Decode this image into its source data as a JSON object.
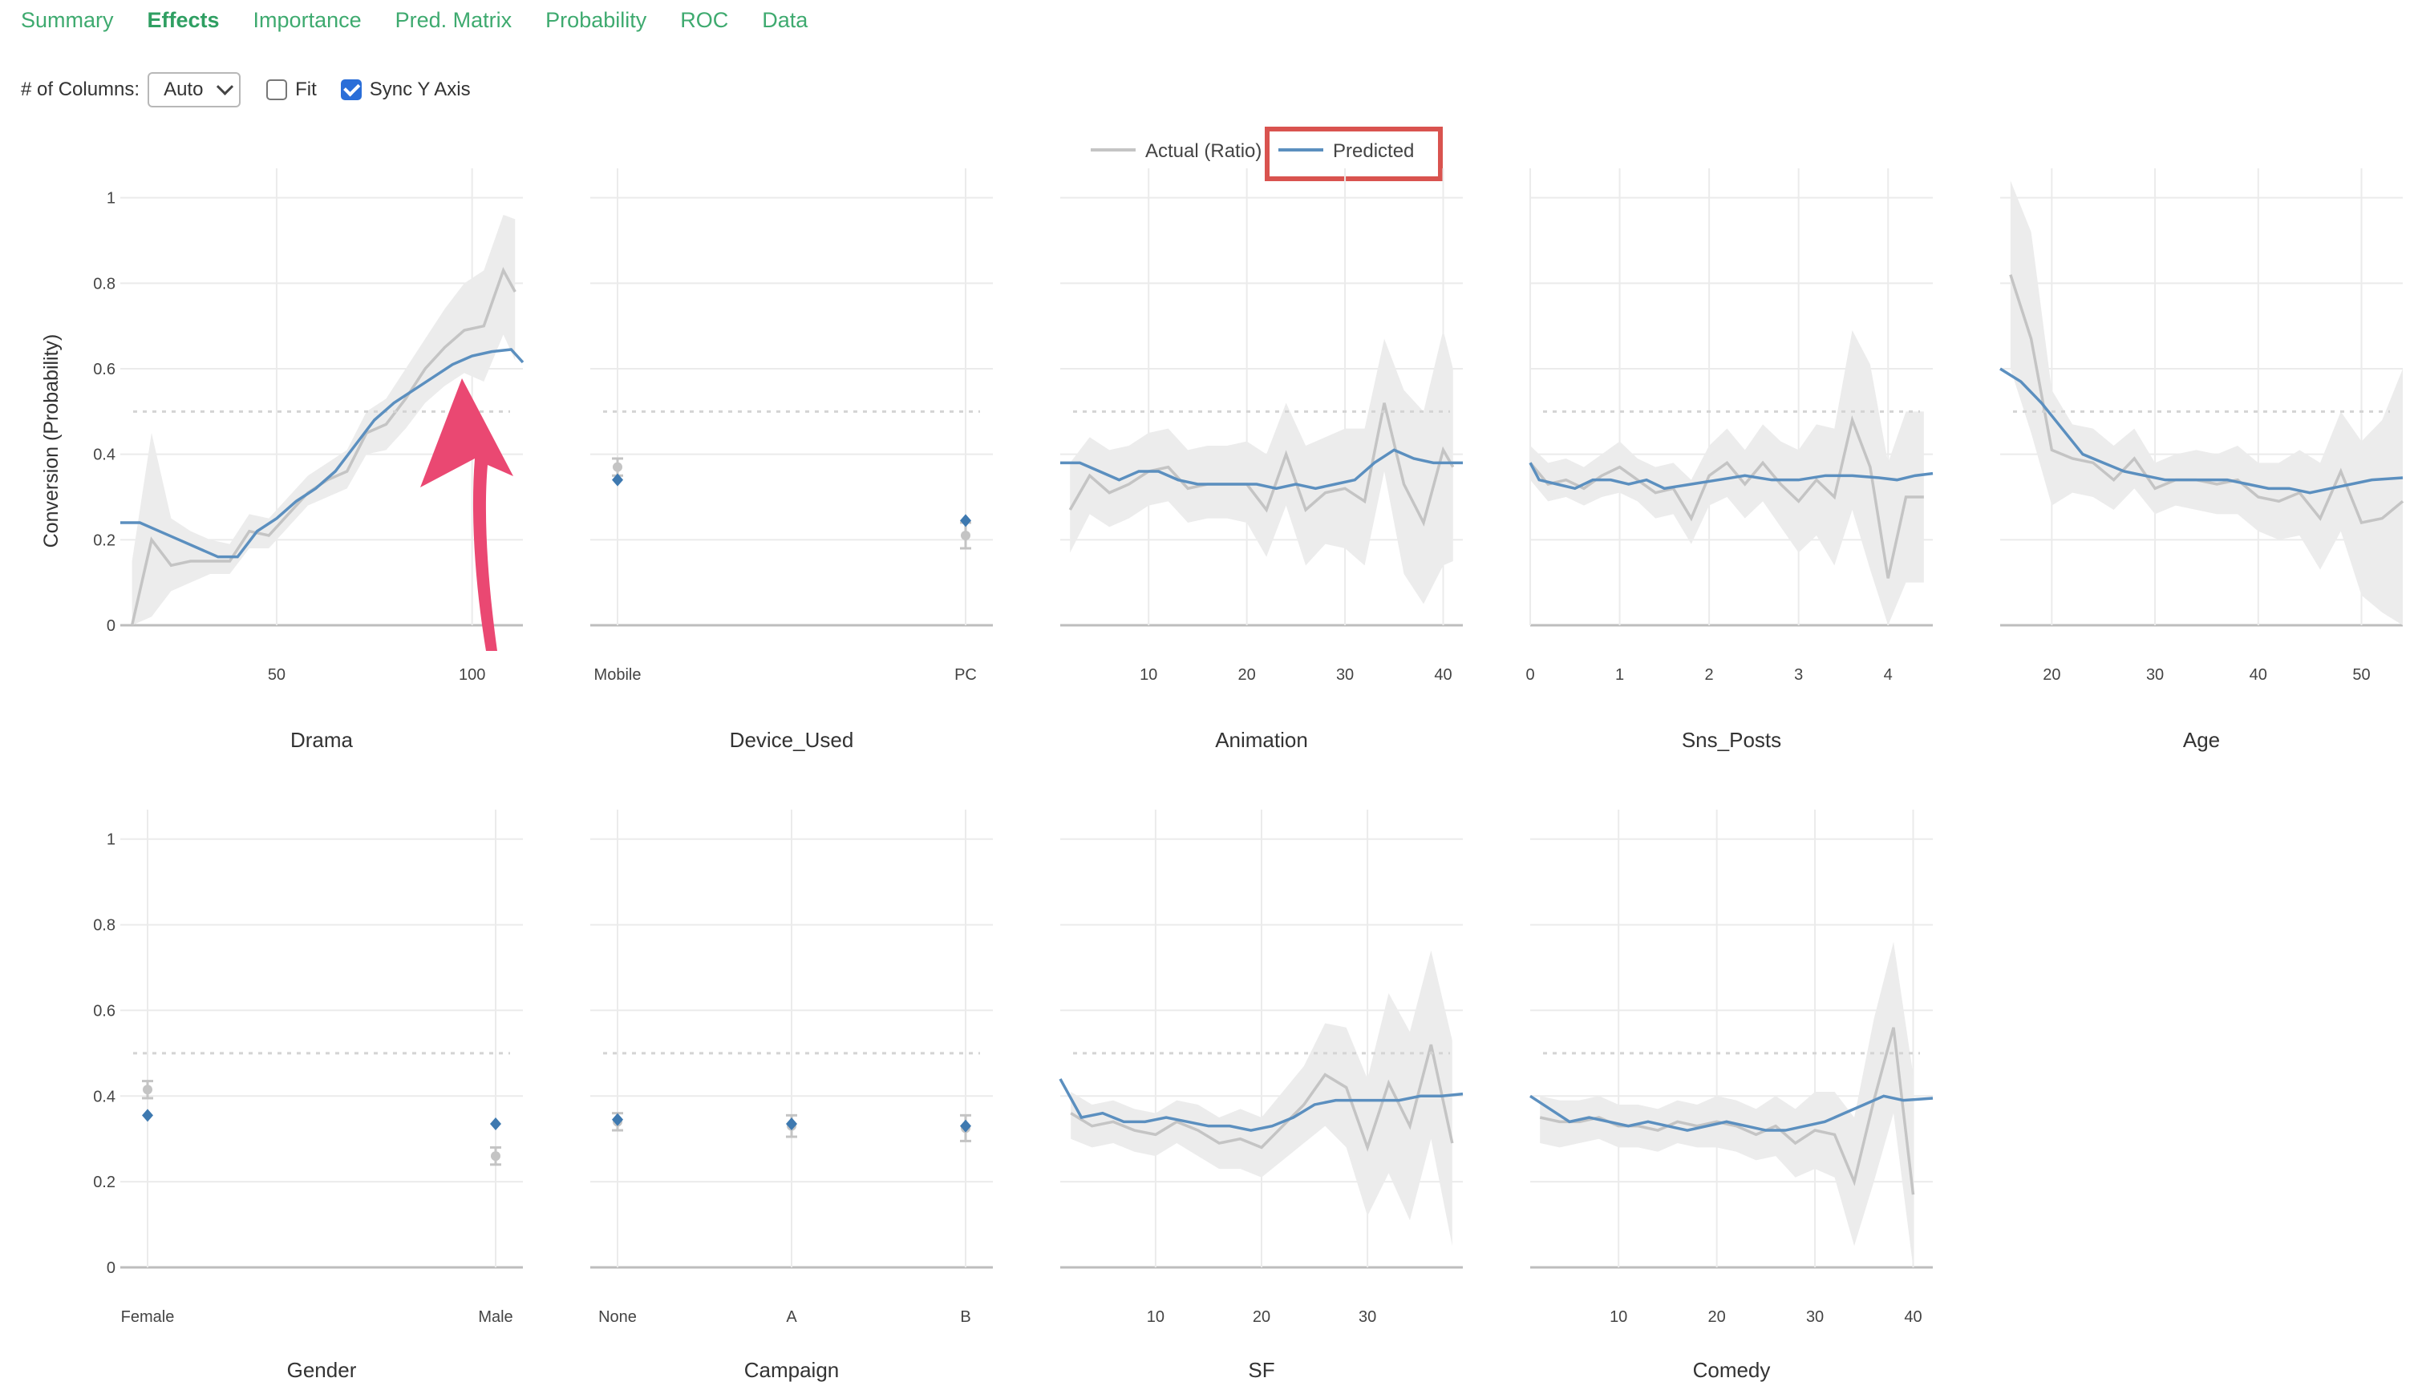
{
  "tabs": [
    {
      "label": "Summary",
      "active": false
    },
    {
      "label": "Effects",
      "active": true
    },
    {
      "label": "Importance",
      "active": false
    },
    {
      "label": "Pred. Matrix",
      "active": false
    },
    {
      "label": "Probability",
      "active": false
    },
    {
      "label": "ROC",
      "active": false
    },
    {
      "label": "Data",
      "active": false
    }
  ],
  "controls": {
    "columns_label": "# of Columns:",
    "columns_value": "Auto",
    "fit_label": "Fit",
    "fit_checked": false,
    "sync_label": "Sync Y Axis",
    "sync_checked": true
  },
  "legend": {
    "actual": "Actual (Ratio)",
    "predicted": "Predicted"
  },
  "colors": {
    "tab": "#3eaa6f",
    "actual": "#c4c4c4",
    "band": "#ececec",
    "predicted": "#5b8fbf",
    "highlight": "#d9534f",
    "arrow": "#ea4872"
  },
  "y_axis": {
    "label": "Conversion (Probability)",
    "ticks": [
      "0",
      "0.2",
      "0.4",
      "0.6",
      "0.8",
      "1"
    ],
    "range": [
      0,
      1.05
    ],
    "reference_line": 0.5
  },
  "chart_data": [
    {
      "type": "line",
      "title": "Drama",
      "xlim": [
        10,
        113
      ],
      "xticks": [
        50,
        100
      ],
      "actual": {
        "x": [
          13,
          18,
          23,
          28,
          33,
          38,
          43,
          48,
          53,
          58,
          63,
          68,
          73,
          78,
          83,
          88,
          93,
          98,
          103,
          108,
          111
        ],
        "y": [
          0,
          0.2,
          0.14,
          0.15,
          0.15,
          0.15,
          0.22,
          0.21,
          0.26,
          0.31,
          0.34,
          0.36,
          0.45,
          0.47,
          0.53,
          0.6,
          0.65,
          0.69,
          0.7,
          0.83,
          0.78
        ]
      },
      "band": {
        "upper": [
          0.15,
          0.45,
          0.25,
          0.22,
          0.2,
          0.19,
          0.26,
          0.25,
          0.3,
          0.35,
          0.38,
          0.41,
          0.5,
          0.53,
          0.6,
          0.67,
          0.74,
          0.8,
          0.83,
          0.96,
          0.95
        ],
        "lower": [
          0,
          0.02,
          0.08,
          0.1,
          0.12,
          0.12,
          0.18,
          0.18,
          0.23,
          0.28,
          0.3,
          0.32,
          0.4,
          0.41,
          0.46,
          0.52,
          0.56,
          0.59,
          0.57,
          0.68,
          0.62
        ]
      },
      "predicted": {
        "x": [
          10,
          15,
          20,
          25,
          30,
          35,
          40,
          45,
          50,
          55,
          60,
          65,
          70,
          75,
          80,
          85,
          90,
          95,
          100,
          105,
          110,
          113
        ],
        "y": [
          0.24,
          0.24,
          0.22,
          0.2,
          0.18,
          0.16,
          0.16,
          0.22,
          0.25,
          0.29,
          0.32,
          0.36,
          0.42,
          0.48,
          0.52,
          0.55,
          0.58,
          0.61,
          0.63,
          0.64,
          0.645,
          0.615
        ]
      }
    },
    {
      "type": "scatter",
      "title": "Device_Used",
      "categories": [
        "Mobile",
        "PC"
      ],
      "actual": [
        0.37,
        0.21
      ],
      "actual_err": [
        0.02,
        0.03
      ],
      "predicted": [
        0.34,
        0.245
      ]
    },
    {
      "type": "line",
      "title": "Animation",
      "xlim": [
        1,
        42
      ],
      "xticks": [
        10,
        20,
        30,
        40
      ],
      "actual": {
        "x": [
          2,
          4,
          6,
          8,
          10,
          12,
          14,
          16,
          18,
          20,
          22,
          24,
          26,
          28,
          30,
          32,
          34,
          36,
          38,
          40,
          41
        ],
        "y": [
          0.27,
          0.35,
          0.31,
          0.33,
          0.36,
          0.37,
          0.32,
          0.33,
          0.33,
          0.33,
          0.27,
          0.4,
          0.27,
          0.31,
          0.32,
          0.29,
          0.52,
          0.33,
          0.24,
          0.41,
          0.37
        ]
      },
      "band": {
        "upper": [
          0.38,
          0.44,
          0.41,
          0.42,
          0.45,
          0.46,
          0.41,
          0.42,
          0.42,
          0.43,
          0.4,
          0.52,
          0.42,
          0.44,
          0.46,
          0.46,
          0.67,
          0.55,
          0.5,
          0.69,
          0.6
        ],
        "lower": [
          0.17,
          0.26,
          0.23,
          0.25,
          0.28,
          0.29,
          0.24,
          0.25,
          0.25,
          0.24,
          0.16,
          0.28,
          0.14,
          0.19,
          0.18,
          0.14,
          0.36,
          0.12,
          0.05,
          0.14,
          0.15
        ]
      },
      "predicted": {
        "x": [
          1,
          3,
          5,
          7,
          9,
          11,
          13,
          15,
          17,
          19,
          21,
          23,
          25,
          27,
          29,
          31,
          33,
          35,
          37,
          39,
          42
        ],
        "y": [
          0.38,
          0.38,
          0.36,
          0.34,
          0.36,
          0.36,
          0.34,
          0.33,
          0.33,
          0.33,
          0.33,
          0.32,
          0.33,
          0.32,
          0.33,
          0.34,
          0.38,
          0.41,
          0.39,
          0.38,
          0.38
        ]
      }
    },
    {
      "type": "line",
      "title": "Sns_Posts",
      "xlim": [
        0,
        4.5
      ],
      "xticks": [
        0,
        1,
        2,
        3,
        4
      ],
      "actual": {
        "x": [
          0,
          0.2,
          0.4,
          0.6,
          0.8,
          1.0,
          1.2,
          1.4,
          1.6,
          1.8,
          2.0,
          2.2,
          2.4,
          2.6,
          2.8,
          3.0,
          3.2,
          3.4,
          3.6,
          3.8,
          4.0,
          4.2,
          4.4
        ],
        "y": [
          0.38,
          0.33,
          0.34,
          0.32,
          0.35,
          0.37,
          0.34,
          0.31,
          0.32,
          0.25,
          0.35,
          0.38,
          0.33,
          0.38,
          0.33,
          0.29,
          0.34,
          0.3,
          0.48,
          0.37,
          0.11,
          0.3,
          0.3
        ]
      },
      "band": {
        "upper": [
          0.42,
          0.38,
          0.39,
          0.37,
          0.4,
          0.43,
          0.39,
          0.37,
          0.38,
          0.34,
          0.42,
          0.46,
          0.41,
          0.47,
          0.43,
          0.41,
          0.47,
          0.46,
          0.69,
          0.61,
          0.38,
          0.5,
          0.5
        ],
        "lower": [
          0.34,
          0.29,
          0.3,
          0.28,
          0.3,
          0.31,
          0.29,
          0.25,
          0.26,
          0.19,
          0.28,
          0.3,
          0.25,
          0.29,
          0.23,
          0.17,
          0.21,
          0.14,
          0.27,
          0.13,
          0,
          0.1,
          0.1
        ]
      },
      "predicted": {
        "x": [
          0,
          0.1,
          0.3,
          0.5,
          0.7,
          0.9,
          1.1,
          1.3,
          1.5,
          1.8,
          2.1,
          2.4,
          2.7,
          3.0,
          3.3,
          3.6,
          3.9,
          4.1,
          4.3,
          4.5
        ],
        "y": [
          0.38,
          0.34,
          0.33,
          0.32,
          0.34,
          0.34,
          0.33,
          0.34,
          0.32,
          0.33,
          0.34,
          0.35,
          0.34,
          0.34,
          0.35,
          0.35,
          0.345,
          0.34,
          0.35,
          0.355
        ]
      }
    },
    {
      "type": "line",
      "title": "Age",
      "xlim": [
        15,
        54
      ],
      "xticks": [
        20,
        30,
        40,
        50
      ],
      "actual": {
        "x": [
          16,
          18,
          20,
          22,
          24,
          26,
          28,
          30,
          32,
          34,
          36,
          38,
          40,
          42,
          44,
          46,
          48,
          50,
          52,
          54
        ],
        "y": [
          0.82,
          0.67,
          0.41,
          0.39,
          0.38,
          0.34,
          0.39,
          0.32,
          0.34,
          0.34,
          0.33,
          0.34,
          0.3,
          0.29,
          0.31,
          0.25,
          0.36,
          0.24,
          0.25,
          0.29
        ]
      },
      "band": {
        "upper": [
          1.04,
          0.92,
          0.55,
          0.47,
          0.46,
          0.42,
          0.46,
          0.38,
          0.4,
          0.41,
          0.4,
          0.42,
          0.38,
          0.38,
          0.41,
          0.38,
          0.5,
          0.43,
          0.48,
          0.6
        ]
      },
      "band_lower": [
        0.6,
        0.45,
        0.28,
        0.31,
        0.3,
        0.27,
        0.32,
        0.26,
        0.28,
        0.27,
        0.26,
        0.26,
        0.22,
        0.2,
        0.21,
        0.13,
        0.22,
        0.07,
        0.03,
        0
      ],
      "predicted": {
        "x": [
          15,
          17,
          19,
          21,
          23,
          25,
          27,
          29,
          31,
          33,
          35,
          37,
          39,
          41,
          43,
          45,
          47,
          49,
          51,
          54
        ],
        "y": [
          0.6,
          0.57,
          0.52,
          0.46,
          0.4,
          0.38,
          0.36,
          0.35,
          0.34,
          0.34,
          0.34,
          0.34,
          0.33,
          0.32,
          0.32,
          0.31,
          0.32,
          0.33,
          0.34,
          0.345
        ]
      }
    },
    {
      "type": "scatter",
      "title": "Gender",
      "categories": [
        "Female",
        "Male"
      ],
      "actual": [
        0.415,
        0.26
      ],
      "actual_err": [
        0.02,
        0.02
      ],
      "predicted": [
        0.355,
        0.335
      ]
    },
    {
      "type": "scatter",
      "title": "Campaign",
      "categories": [
        "None",
        "A",
        "B"
      ],
      "actual": [
        0.34,
        0.33,
        0.325
      ],
      "actual_err": [
        0.02,
        0.025,
        0.03
      ],
      "predicted": [
        0.345,
        0.335,
        0.33
      ]
    },
    {
      "type": "line",
      "title": "SF",
      "xlim": [
        1,
        39
      ],
      "xticks": [
        10,
        20,
        30
      ],
      "actual": {
        "x": [
          2,
          4,
          6,
          8,
          10,
          12,
          14,
          16,
          18,
          20,
          22,
          24,
          26,
          28,
          30,
          32,
          34,
          36,
          38
        ],
        "y": [
          0.36,
          0.33,
          0.34,
          0.32,
          0.31,
          0.34,
          0.32,
          0.29,
          0.3,
          0.28,
          0.33,
          0.38,
          0.45,
          0.42,
          0.28,
          0.43,
          0.33,
          0.52,
          0.29
        ]
      },
      "band": {
        "upper": [
          0.41,
          0.38,
          0.39,
          0.37,
          0.36,
          0.39,
          0.38,
          0.35,
          0.37,
          0.35,
          0.41,
          0.47,
          0.57,
          0.56,
          0.44,
          0.64,
          0.55,
          0.74,
          0.53
        ]
      },
      "band_lower": [
        0.3,
        0.28,
        0.29,
        0.27,
        0.26,
        0.29,
        0.26,
        0.23,
        0.23,
        0.21,
        0.25,
        0.29,
        0.33,
        0.28,
        0.12,
        0.22,
        0.11,
        0.3,
        0.05
      ],
      "predicted": {
        "x": [
          1,
          3,
          5,
          7,
          9,
          11,
          13,
          15,
          17,
          19,
          21,
          23,
          25,
          27,
          29,
          31,
          33,
          35,
          37,
          39
        ],
        "y": [
          0.44,
          0.35,
          0.36,
          0.34,
          0.34,
          0.35,
          0.34,
          0.33,
          0.33,
          0.32,
          0.33,
          0.35,
          0.38,
          0.39,
          0.39,
          0.39,
          0.39,
          0.4,
          0.4,
          0.405
        ]
      }
    },
    {
      "type": "line",
      "title": "Comedy",
      "xlim": [
        1,
        42
      ],
      "xticks": [
        10,
        20,
        30,
        40
      ],
      "actual": {
        "x": [
          2,
          4,
          6,
          8,
          10,
          12,
          14,
          16,
          18,
          20,
          22,
          24,
          26,
          28,
          30,
          32,
          34,
          36,
          38,
          40
        ],
        "y": [
          0.35,
          0.34,
          0.34,
          0.35,
          0.33,
          0.33,
          0.32,
          0.34,
          0.33,
          0.34,
          0.33,
          0.31,
          0.33,
          0.29,
          0.32,
          0.31,
          0.2,
          0.39,
          0.56,
          0.17
        ]
      },
      "band": {
        "upper": [
          0.4,
          0.39,
          0.39,
          0.4,
          0.38,
          0.38,
          0.37,
          0.39,
          0.38,
          0.4,
          0.39,
          0.37,
          0.4,
          0.37,
          0.41,
          0.41,
          0.35,
          0.58,
          0.76,
          0.45
        ]
      },
      "band_lower": [
        0.29,
        0.28,
        0.29,
        0.3,
        0.28,
        0.28,
        0.27,
        0.29,
        0.28,
        0.28,
        0.27,
        0.25,
        0.26,
        0.21,
        0.23,
        0.21,
        0.05,
        0.2,
        0.36,
        0
      ],
      "predicted": {
        "x": [
          1,
          3,
          5,
          7,
          9,
          11,
          13,
          15,
          17,
          19,
          21,
          23,
          25,
          27,
          29,
          31,
          33,
          35,
          37,
          39,
          42
        ],
        "y": [
          0.4,
          0.37,
          0.34,
          0.35,
          0.34,
          0.33,
          0.34,
          0.33,
          0.32,
          0.33,
          0.34,
          0.33,
          0.32,
          0.32,
          0.33,
          0.34,
          0.36,
          0.38,
          0.4,
          0.39,
          0.395
        ]
      }
    }
  ]
}
